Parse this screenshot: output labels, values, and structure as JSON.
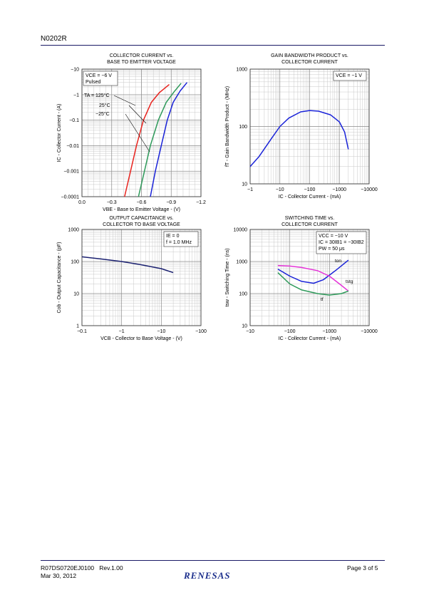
{
  "header": {
    "part_number": "N0202R"
  },
  "footer": {
    "doc_number": "R07DS0720EJ0100",
    "revision": "Rev.1.00",
    "date": "Mar 30, 2012",
    "page": "Page 3 of 5",
    "logo_text": "RENESAS"
  },
  "chart_data": [
    {
      "id": "ic-vbe",
      "type": "line",
      "title": [
        "COLLECTOR CURRENT vs.",
        "BASE TO EMITTER VOLTAGE"
      ],
      "xlabel": "VBE - Base to Emitter Voltage - (V)",
      "ylabel": "IC - Collector Current - (A)",
      "x_scale": "linear",
      "y_scale": "log",
      "xlim": [
        0.0,
        -1.2
      ],
      "ylim": [
        -0.0001,
        -10
      ],
      "x_ticks": [
        "0.0",
        "−0.3",
        "−0.6",
        "−0.9",
        "−1.2"
      ],
      "y_ticks": [
        "−0.0001",
        "−0.001",
        "−0.01",
        "−0.1",
        "−1",
        "−10"
      ],
      "conditions": [
        "VCE = −6 V",
        "Pulsed"
      ],
      "series_labels": [
        "TA = 125°C",
        "25°C",
        "−25°C"
      ],
      "series": [
        {
          "name": "125°C",
          "color": "#e8231e",
          "points": [
            [
              -0.43,
              -0.0001
            ],
            [
              -0.49,
              -0.001
            ],
            [
              -0.55,
              -0.01
            ],
            [
              -0.62,
              -0.1
            ],
            [
              -0.7,
              -0.5
            ],
            [
              -0.78,
              -1.2
            ],
            [
              -0.88,
              -2.5
            ]
          ]
        },
        {
          "name": "25°C",
          "color": "#2e9a5a",
          "points": [
            [
              -0.57,
              -0.0001
            ],
            [
              -0.63,
              -0.001
            ],
            [
              -0.69,
              -0.01
            ],
            [
              -0.77,
              -0.1
            ],
            [
              -0.85,
              -0.5
            ],
            [
              -0.93,
              -1.3
            ],
            [
              -1.0,
              -2.8
            ]
          ]
        },
        {
          "name": "−25°C",
          "color": "#1a23d8",
          "points": [
            [
              -0.69,
              -0.0001
            ],
            [
              -0.74,
              -0.001
            ],
            [
              -0.8,
              -0.01
            ],
            [
              -0.86,
              -0.1
            ],
            [
              -0.92,
              -0.5
            ],
            [
              -0.99,
              -1.4
            ],
            [
              -1.06,
              -3.0
            ]
          ]
        }
      ]
    },
    {
      "id": "ft-ic",
      "type": "line",
      "title": [
        "GAIN BANDWIDTH PRODUCT vs.",
        "COLLECTOR CURRENT"
      ],
      "xlabel": "IC - Collector Current - (mA)",
      "ylabel": "fT - Gain Bandwidth Product - (MHz)",
      "x_scale": "log",
      "y_scale": "log",
      "xlim": [
        -1,
        -10000
      ],
      "ylim": [
        10,
        1000
      ],
      "x_ticks": [
        "−1",
        "−10",
        "−100",
        "−1000",
        "−10000"
      ],
      "y_ticks": [
        "10",
        "100",
        "1000"
      ],
      "conditions": [
        "VCE = −1 V"
      ],
      "series": [
        {
          "name": "",
          "color": "#1a23d8",
          "points": [
            [
              -1,
              20
            ],
            [
              -2,
              30
            ],
            [
              -5,
              60
            ],
            [
              -10,
              100
            ],
            [
              -20,
              140
            ],
            [
              -50,
              180
            ],
            [
              -100,
              190
            ],
            [
              -200,
              185
            ],
            [
              -500,
              160
            ],
            [
              -1000,
              120
            ],
            [
              -1500,
              80
            ],
            [
              -2000,
              40
            ]
          ]
        }
      ]
    },
    {
      "id": "cob-vcb",
      "type": "line",
      "title": [
        "OUTPUT CAPACITANCE vs.",
        "COLLECTOR TO BASE VOLTAGE"
      ],
      "xlabel": "VCB - Collector to Base Voltage - (V)",
      "ylabel": "Cob - Output Capacitance - (pF)",
      "x_scale": "log",
      "y_scale": "log",
      "xlim": [
        -0.1,
        -100
      ],
      "ylim": [
        1,
        1000
      ],
      "x_ticks": [
        "−0.1",
        "−1",
        "−10",
        "−100"
      ],
      "y_ticks": [
        "1",
        "10",
        "100",
        "1000"
      ],
      "conditions": [
        "IE = 0",
        "f = 1.0 MHz"
      ],
      "series": [
        {
          "name": "",
          "color": "#1a2070",
          "points": [
            [
              -0.1,
              140
            ],
            [
              -0.3,
              120
            ],
            [
              -1,
              100
            ],
            [
              -3,
              80
            ],
            [
              -10,
              60
            ],
            [
              -20,
              45
            ]
          ]
        }
      ]
    },
    {
      "id": "sw-ic",
      "type": "line",
      "title": [
        "SWITCHING TIME vs.",
        "COLLECTOR CURRENT"
      ],
      "xlabel": "IC - Collector Current - (mA)",
      "ylabel": "tsw - Switching Time - (ns)",
      "x_scale": "log",
      "y_scale": "log",
      "xlim": [
        -10,
        -10000
      ],
      "ylim": [
        10,
        10000
      ],
      "x_ticks": [
        "−10",
        "−100",
        "−1000",
        "−10000"
      ],
      "y_ticks": [
        "10",
        "100",
        "1000",
        "10000"
      ],
      "conditions": [
        "VCC = −10 V",
        "IC = 30IB1 = −30IB2",
        "PW = 50 μs"
      ],
      "series_labels": [
        "ton",
        "tstg",
        "tf"
      ],
      "series": [
        {
          "name": "ton",
          "color": "#1a23d8",
          "points": [
            [
              -50,
              580
            ],
            [
              -100,
              350
            ],
            [
              -200,
              240
            ],
            [
              -400,
              210
            ],
            [
              -700,
              270
            ],
            [
              -1500,
              550
            ],
            [
              -3000,
              1100
            ]
          ]
        },
        {
          "name": "tstg",
          "color": "#e534d8",
          "points": [
            [
              -50,
              750
            ],
            [
              -100,
              720
            ],
            [
              -200,
              650
            ],
            [
              -500,
              520
            ],
            [
              -1000,
              350
            ],
            [
              -2000,
              180
            ],
            [
              -3000,
              120
            ]
          ]
        },
        {
          "name": "tf",
          "color": "#2e9a5a",
          "points": [
            [
              -50,
              450
            ],
            [
              -100,
              200
            ],
            [
              -200,
              130
            ],
            [
              -500,
              100
            ],
            [
              -1000,
              90
            ],
            [
              -2000,
              100
            ],
            [
              -3000,
              120
            ]
          ]
        }
      ]
    }
  ]
}
